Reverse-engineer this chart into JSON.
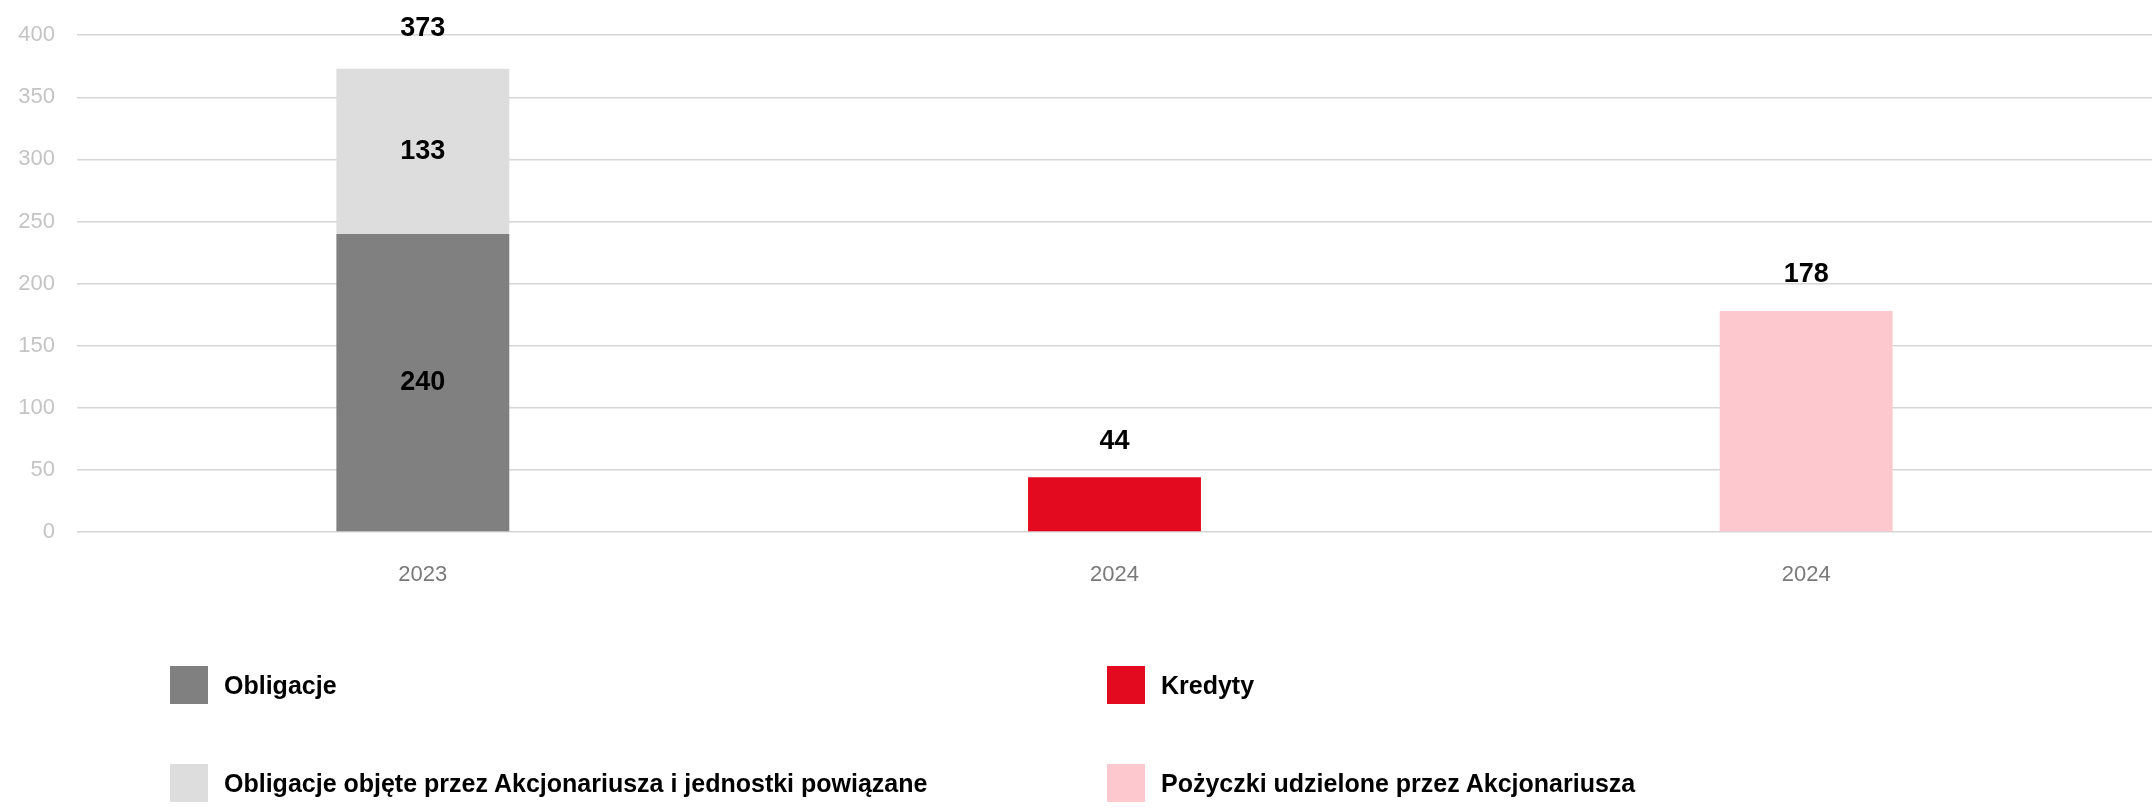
{
  "chart_data": {
    "type": "bar",
    "categories": [
      "2023",
      "2024",
      "2024"
    ],
    "series": [
      {
        "name": "Obligacje",
        "color": "#808080",
        "values": [
          240,
          null,
          null
        ]
      },
      {
        "name": "Obligacje objęte przez Akcjonariusza i jednostki powiązane",
        "color": "#dddddd",
        "values": [
          133,
          null,
          null
        ]
      },
      {
        "name": "Kredyty",
        "color": "#e30a20",
        "values": [
          null,
          44,
          null
        ]
      },
      {
        "name": "Pożyczki udzielone przez Akcjonariusza",
        "color": "#fdc8ce",
        "values": [
          null,
          null,
          178
        ]
      }
    ],
    "stacked": true,
    "totals": [
      "373",
      null,
      null
    ],
    "data_labels": true,
    "ylim": [
      0,
      400
    ],
    "yticks": [
      0,
      50,
      100,
      150,
      200,
      250,
      300,
      350,
      400
    ],
    "grid": "y",
    "legend": "bottom"
  }
}
